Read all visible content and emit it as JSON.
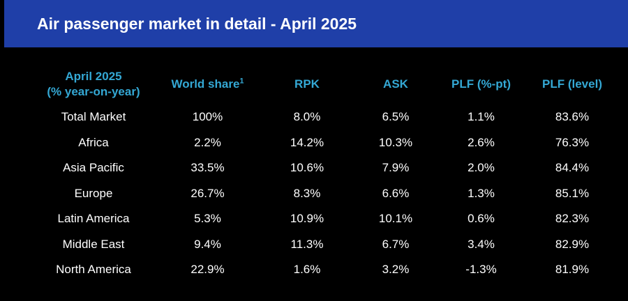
{
  "header": {
    "title": "Air passenger market in detail - April 2025"
  },
  "table": {
    "header": {
      "period_line1": "April 2025",
      "period_line2": "(% year-on-year)",
      "world_share": "World share",
      "world_share_footnote": "1",
      "rpk": "RPK",
      "ask": "ASK",
      "plf_pt": "PLF (%-pt)",
      "plf_level": "PLF (level)"
    },
    "rows": [
      [
        "Total Market",
        "100%",
        "8.0%",
        "6.5%",
        "1.1%",
        "83.6%"
      ],
      [
        "Africa",
        "2.2%",
        "14.2%",
        "10.3%",
        "2.6%",
        "76.3%"
      ],
      [
        "Asia Pacific",
        "33.5%",
        "10.6%",
        "7.9%",
        "2.0%",
        "84.4%"
      ],
      [
        "Europe",
        "26.7%",
        "8.3%",
        "6.6%",
        "1.3%",
        "85.1%"
      ],
      [
        "Latin America",
        "5.3%",
        "10.9%",
        "10.1%",
        "0.6%",
        "82.3%"
      ],
      [
        "Middle East",
        "9.4%",
        "11.3%",
        "6.7%",
        "3.4%",
        "82.9%"
      ],
      [
        "North America",
        "22.9%",
        "1.6%",
        "3.2%",
        "-1.3%",
        "81.9%"
      ]
    ]
  },
  "colors": {
    "header_bar": "#1f3fa8",
    "column_header_text": "#34a8d4",
    "body_text": "#ffffff",
    "background": "#000000"
  }
}
